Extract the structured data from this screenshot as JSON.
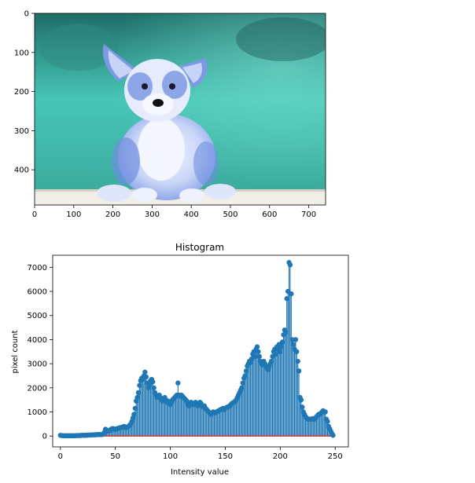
{
  "chart_data": [
    {
      "type": "image",
      "title": "",
      "xlabel": "",
      "ylabel": "",
      "xlim": [
        0,
        743
      ],
      "ylim": [
        490,
        0
      ],
      "xticks": [
        0,
        100,
        200,
        300,
        400,
        500,
        600,
        700
      ],
      "yticks": [
        0,
        100,
        200,
        300,
        400
      ],
      "image_subject": "blue-tinted corgi puppy sitting on a wooden ledge against a teal bokeh background",
      "colors": {
        "background_top": "#1f6d68",
        "background_mid": "#46c6b7",
        "background_bottom": "#3aa79a",
        "fur_blue": "#6f8fe0",
        "fur_light": "#e9eefc",
        "ledge": "#f1eee8"
      }
    },
    {
      "type": "stem",
      "title": "Histogram",
      "xlabel": "Intensity value",
      "ylabel": "pixel count",
      "xlim": [
        -7,
        262
      ],
      "ylim": [
        -450,
        7500
      ],
      "xticks": [
        0,
        50,
        100,
        150,
        200,
        250
      ],
      "yticks": [
        0,
        1000,
        2000,
        3000,
        4000,
        5000,
        6000,
        7000
      ],
      "grid": false,
      "colors": {
        "stem": "#1f77b4",
        "baseline": "#d62728"
      },
      "x_start": 0,
      "values": [
        30,
        20,
        15,
        10,
        10,
        10,
        10,
        10,
        10,
        10,
        10,
        10,
        10,
        10,
        15,
        20,
        20,
        20,
        20,
        30,
        30,
        30,
        30,
        30,
        35,
        40,
        40,
        40,
        40,
        50,
        50,
        50,
        50,
        60,
        60,
        60,
        60,
        60,
        60,
        80,
        150,
        280,
        250,
        200,
        220,
        230,
        280,
        300,
        310,
        280,
        270,
        300,
        310,
        330,
        340,
        350,
        370,
        380,
        400,
        360,
        350,
        380,
        400,
        450,
        500,
        600,
        750,
        900,
        1150,
        1450,
        1600,
        1800,
        2100,
        2300,
        2400,
        2350,
        2500,
        2650,
        2450,
        2200,
        2000,
        2150,
        2300,
        2350,
        2250,
        2000,
        1800,
        1700,
        1600,
        1650,
        1700,
        1600,
        1500,
        1450,
        1550,
        1600,
        1500,
        1400,
        1450,
        1350,
        1300,
        1400,
        1500,
        1550,
        1600,
        1650,
        1700,
        2200,
        1700,
        1650,
        1700,
        1650,
        1600,
        1550,
        1500,
        1450,
        1300,
        1250,
        1300,
        1400,
        1350,
        1300,
        1350,
        1400,
        1300,
        1250,
        1300,
        1400,
        1350,
        1250,
        1200,
        1250,
        1150,
        1100,
        1050,
        1000,
        950,
        900,
        950,
        1000,
        980,
        960,
        1000,
        1020,
        1050,
        1080,
        1100,
        1120,
        1150,
        1100,
        1150,
        1180,
        1200,
        1220,
        1250,
        1300,
        1350,
        1380,
        1400,
        1450,
        1500,
        1600,
        1700,
        1800,
        1900,
        2000,
        2200,
        2400,
        2500,
        2700,
        2900,
        3000,
        3100,
        3050,
        3200,
        3400,
        3500,
        3300,
        3600,
        3700,
        3500,
        3300,
        3100,
        3000,
        2950,
        3100,
        3000,
        2900,
        2800,
        2750,
        2900,
        3000,
        3100,
        3300,
        3500,
        3600,
        3400,
        3700,
        3600,
        3800,
        3500,
        3700,
        3900,
        4200,
        4400,
        4300,
        5700,
        6000,
        7200,
        7100,
        5900,
        4000,
        3800,
        3600,
        4000,
        3500,
        3100,
        2700,
        1600,
        1500,
        1200,
        1000,
        900,
        800,
        750,
        700,
        700,
        700,
        700,
        720,
        700,
        700,
        750,
        800,
        850,
        900,
        900,
        950,
        1000,
        1050,
        1000,
        1000,
        700,
        600,
        400,
        300,
        200,
        100,
        30
      ]
    }
  ]
}
